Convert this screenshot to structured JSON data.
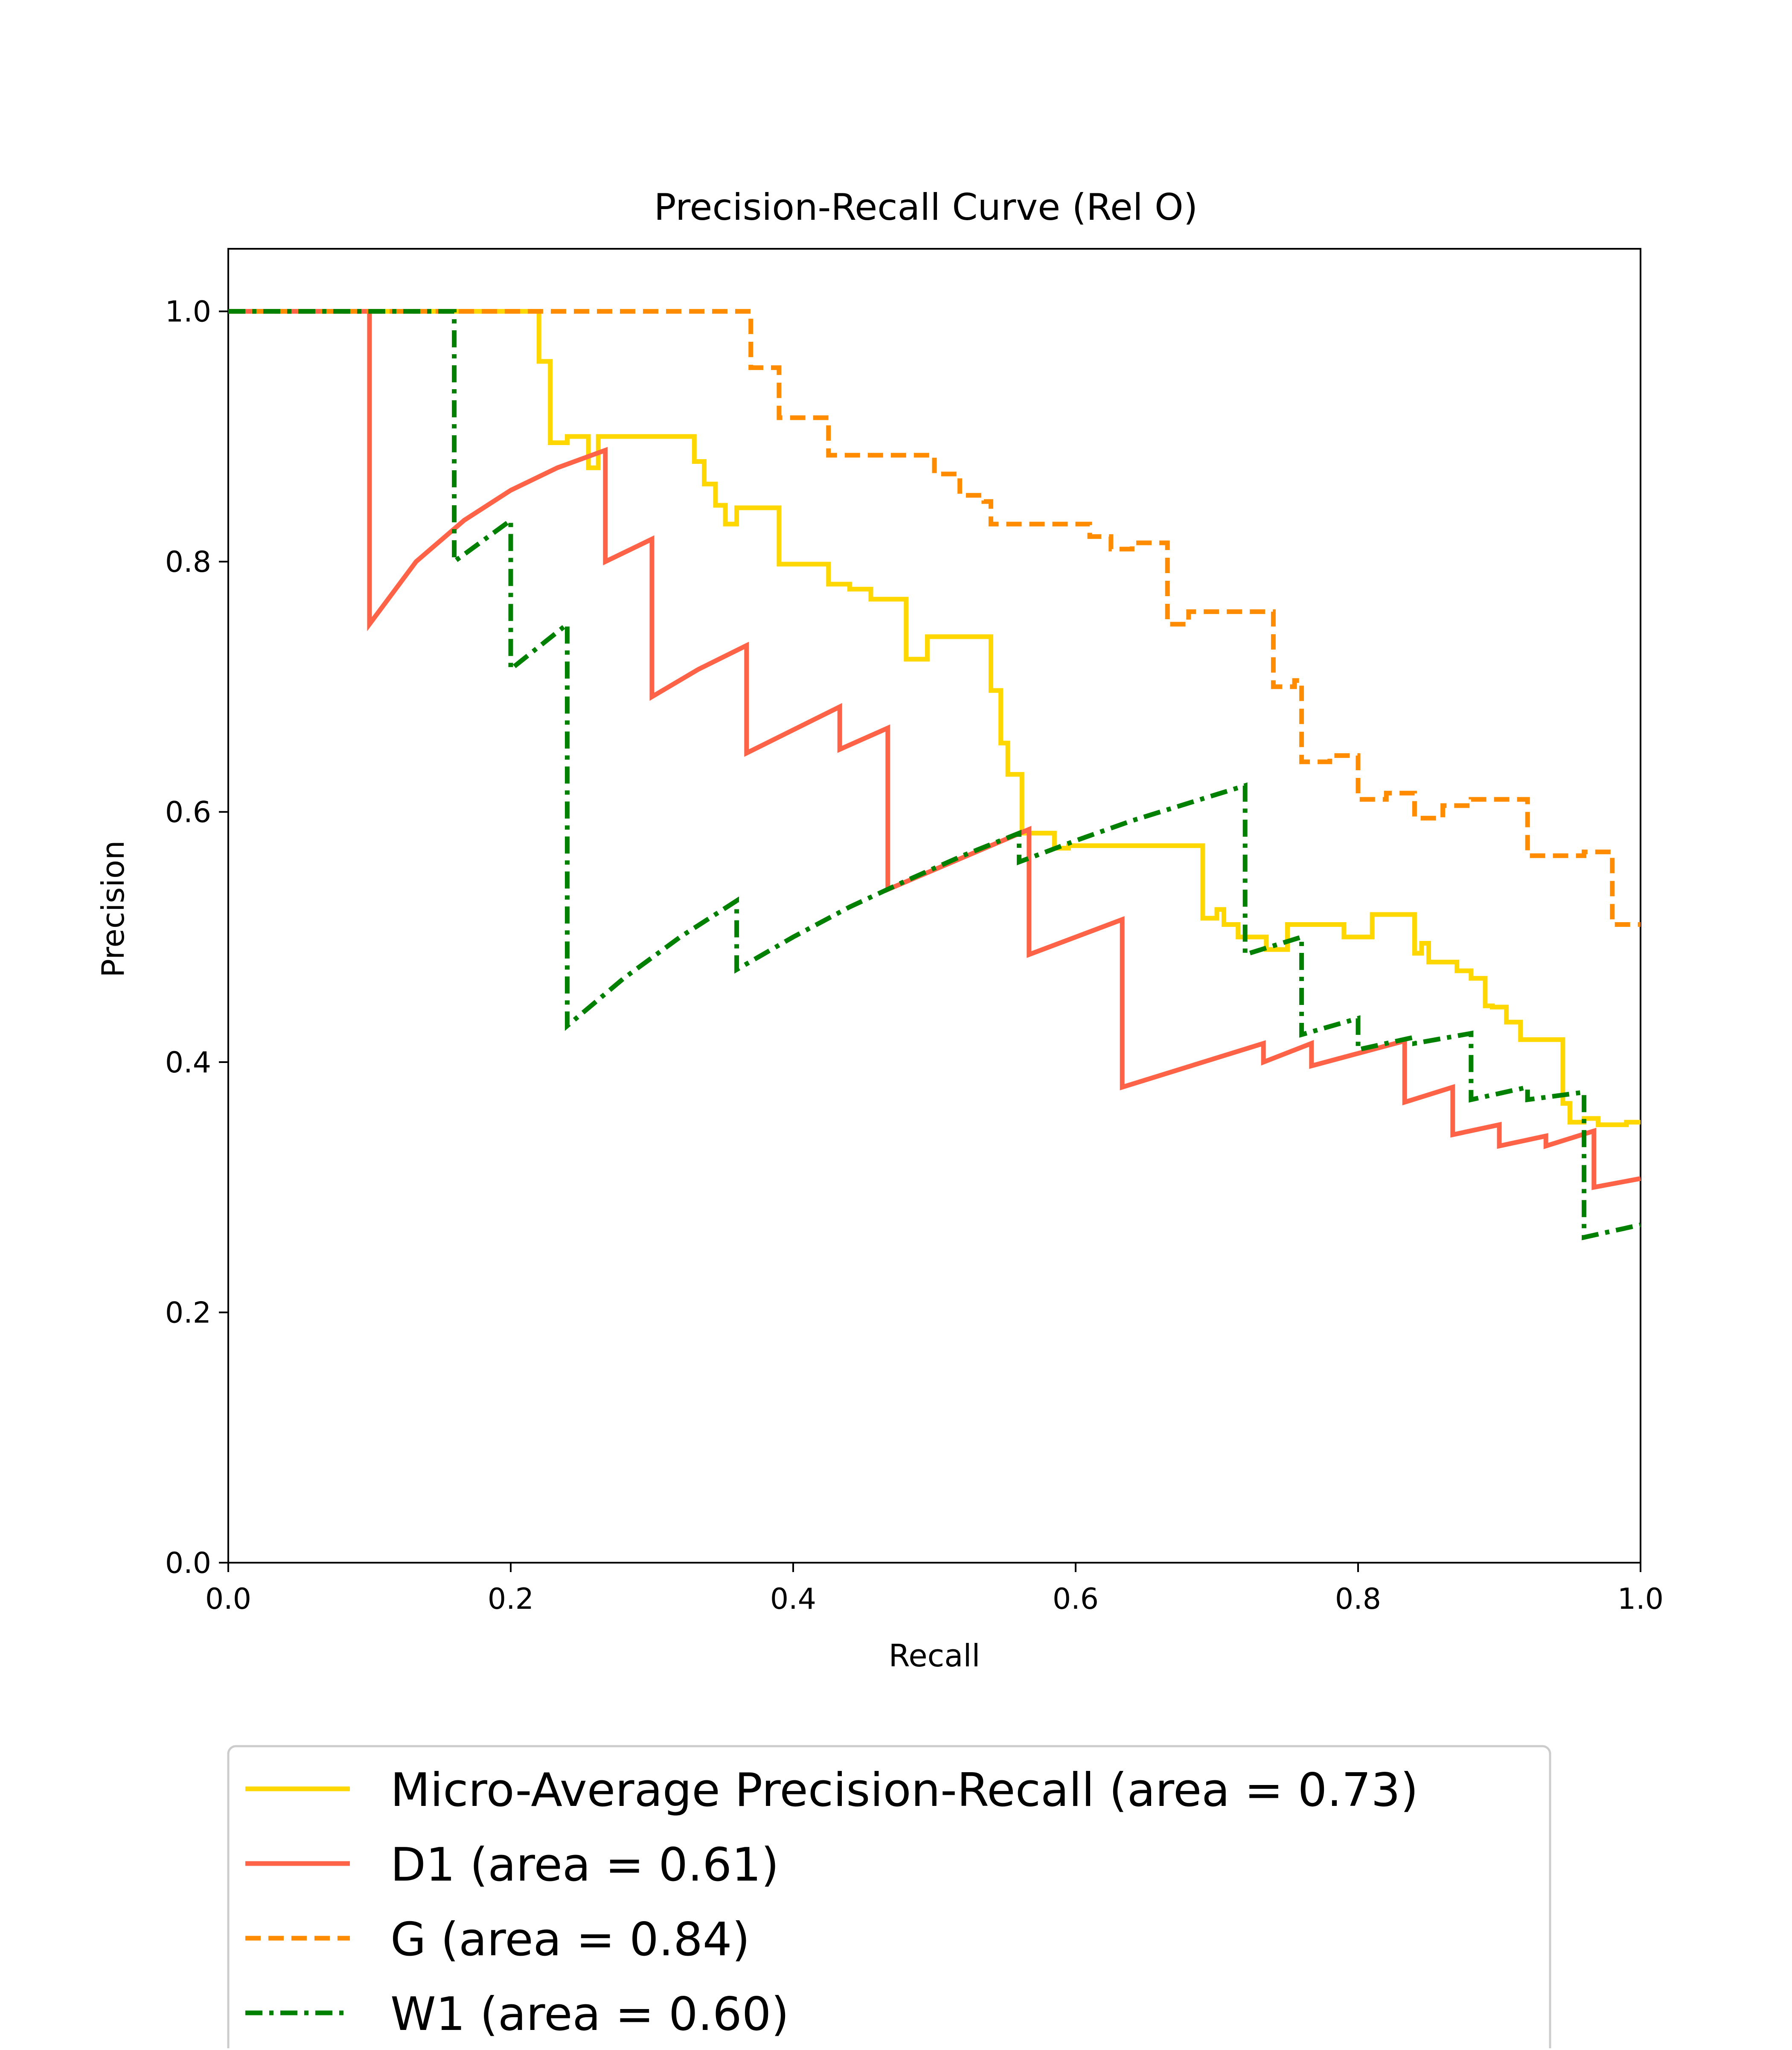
{
  "chart_data": {
    "type": "line",
    "title": "Precision-Recall Curve (Rel O)",
    "xlabel": "Recall",
    "ylabel": "Precision",
    "xlim": [
      0.0,
      1.0
    ],
    "ylim": [
      0.0,
      1.05
    ],
    "xticks": [
      "0.0",
      "0.2",
      "0.4",
      "0.6",
      "0.8",
      "1.0"
    ],
    "yticks": [
      "0.0",
      "0.2",
      "0.4",
      "0.6",
      "0.8",
      "1.0"
    ],
    "grid": false,
    "legend_position": "below plot",
    "series": [
      {
        "name": "Micro-Average Precision-Recall (area = 0.73)",
        "color": "#FFD700",
        "dash": "solid",
        "x": [
          0.0,
          0.22,
          0.22,
          0.228,
          0.228,
          0.24,
          0.24,
          0.255,
          0.255,
          0.262,
          0.262,
          0.33,
          0.33,
          0.337,
          0.337,
          0.345,
          0.345,
          0.352,
          0.352,
          0.36,
          0.36,
          0.39,
          0.39,
          0.425,
          0.425,
          0.44,
          0.44,
          0.455,
          0.455,
          0.48,
          0.48,
          0.495,
          0.495,
          0.54,
          0.54,
          0.547,
          0.547,
          0.552,
          0.552,
          0.562,
          0.562,
          0.585,
          0.585,
          0.595,
          0.595,
          0.69,
          0.69,
          0.7,
          0.7,
          0.705,
          0.705,
          0.715,
          0.715,
          0.72,
          0.72,
          0.735,
          0.735,
          0.75,
          0.75,
          0.79,
          0.79,
          0.81,
          0.81,
          0.84,
          0.84,
          0.845,
          0.845,
          0.85,
          0.85,
          0.87,
          0.87,
          0.88,
          0.88,
          0.89,
          0.89,
          0.895,
          0.895,
          0.905,
          0.905,
          0.915,
          0.915,
          0.945,
          0.945,
          0.95,
          0.95,
          0.96,
          0.96,
          0.97,
          0.97,
          0.99,
          0.99,
          1.0
        ],
        "y": [
          1.0,
          1.0,
          0.96,
          0.96,
          0.895,
          0.895,
          0.9,
          0.9,
          0.875,
          0.875,
          0.9,
          0.9,
          0.88,
          0.88,
          0.862,
          0.862,
          0.845,
          0.845,
          0.83,
          0.83,
          0.843,
          0.843,
          0.798,
          0.798,
          0.782,
          0.782,
          0.778,
          0.778,
          0.77,
          0.77,
          0.722,
          0.722,
          0.74,
          0.74,
          0.697,
          0.697,
          0.655,
          0.655,
          0.63,
          0.63,
          0.583,
          0.583,
          0.571,
          0.571,
          0.573,
          0.573,
          0.515,
          0.515,
          0.522,
          0.522,
          0.51,
          0.51,
          0.5,
          0.5,
          0.5,
          0.5,
          0.49,
          0.49,
          0.51,
          0.51,
          0.5,
          0.5,
          0.518,
          0.518,
          0.487,
          0.487,
          0.495,
          0.495,
          0.48,
          0.48,
          0.473,
          0.473,
          0.467,
          0.467,
          0.445,
          0.445,
          0.444,
          0.444,
          0.432,
          0.432,
          0.418,
          0.418,
          0.367,
          0.367,
          0.352,
          0.352,
          0.355,
          0.355,
          0.35,
          0.35,
          0.352,
          0.352
        ]
      },
      {
        "name": "D1 (area = 0.61)",
        "color": "#FF6347",
        "dash": "solid",
        "x": [
          0.0,
          0.1,
          0.1,
          0.133,
          0.167,
          0.2,
          0.233,
          0.267,
          0.267,
          0.3,
          0.3,
          0.333,
          0.367,
          0.367,
          0.433,
          0.433,
          0.467,
          0.467,
          0.567,
          0.567,
          0.633,
          0.633,
          0.733,
          0.733,
          0.767,
          0.767,
          0.833,
          0.833,
          0.867,
          0.867,
          0.9,
          0.9,
          0.933,
          0.933,
          0.967,
          0.967,
          1.0
        ],
        "y": [
          1.0,
          1.0,
          0.75,
          0.8,
          0.833,
          0.857,
          0.875,
          0.889,
          0.8,
          0.818,
          0.692,
          0.714,
          0.733,
          0.647,
          0.684,
          0.65,
          0.667,
          0.538,
          0.586,
          0.486,
          0.514,
          0.38,
          0.415,
          0.4,
          0.415,
          0.397,
          0.417,
          0.368,
          0.38,
          0.342,
          0.35,
          0.333,
          0.341,
          0.333,
          0.345,
          0.3,
          0.307
        ]
      },
      {
        "name": "G (area = 0.84)",
        "color": "#FF8C00",
        "dash": "dashed",
        "x": [
          0.0,
          0.37,
          0.37,
          0.39,
          0.39,
          0.425,
          0.425,
          0.5,
          0.5,
          0.518,
          0.518,
          0.535,
          0.535,
          0.54,
          0.54,
          0.61,
          0.61,
          0.625,
          0.625,
          0.64,
          0.64,
          0.665,
          0.665,
          0.68,
          0.68,
          0.74,
          0.74,
          0.755,
          0.755,
          0.76,
          0.76,
          0.78,
          0.78,
          0.8,
          0.8,
          0.82,
          0.82,
          0.84,
          0.84,
          0.86,
          0.86,
          0.88,
          0.88,
          0.92,
          0.92,
          0.96,
          0.96,
          0.98,
          0.98,
          1.0
        ],
        "y": [
          1.0,
          1.0,
          0.955,
          0.955,
          0.915,
          0.915,
          0.885,
          0.885,
          0.87,
          0.87,
          0.853,
          0.853,
          0.848,
          0.848,
          0.83,
          0.83,
          0.82,
          0.82,
          0.81,
          0.81,
          0.815,
          0.815,
          0.75,
          0.75,
          0.76,
          0.76,
          0.7,
          0.7,
          0.705,
          0.705,
          0.64,
          0.64,
          0.645,
          0.645,
          0.61,
          0.61,
          0.615,
          0.615,
          0.595,
          0.595,
          0.605,
          0.605,
          0.61,
          0.61,
          0.565,
          0.565,
          0.568,
          0.568,
          0.51,
          0.51
        ]
      },
      {
        "name": "W1 (area = 0.60)",
        "color": "#008000",
        "dash": "dashdot",
        "x": [
          0.0,
          0.16,
          0.16,
          0.2,
          0.2,
          0.24,
          0.24,
          0.28,
          0.32,
          0.36,
          0.36,
          0.4,
          0.44,
          0.48,
          0.52,
          0.56,
          0.56,
          0.6,
          0.64,
          0.68,
          0.72,
          0.72,
          0.76,
          0.76,
          0.8,
          0.8,
          0.84,
          0.84,
          0.88,
          0.88,
          0.92,
          0.92,
          0.96,
          0.96,
          1.0
        ],
        "y": [
          1.0,
          1.0,
          0.8,
          0.833,
          0.714,
          0.75,
          0.429,
          0.467,
          0.5,
          0.529,
          0.474,
          0.5,
          0.524,
          0.545,
          0.565,
          0.583,
          0.56,
          0.577,
          0.593,
          0.607,
          0.621,
          0.486,
          0.5,
          0.422,
          0.435,
          0.41,
          0.42,
          0.415,
          0.423,
          0.37,
          0.38,
          0.37,
          0.376,
          0.26,
          0.27
        ]
      }
    ]
  }
}
